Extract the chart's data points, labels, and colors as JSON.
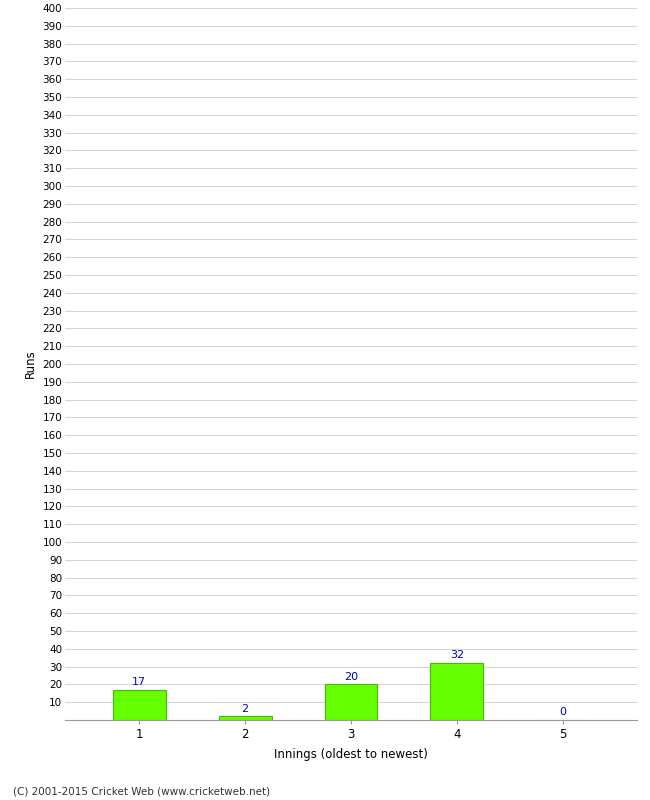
{
  "xlabel": "Innings (oldest to newest)",
  "ylabel": "Runs",
  "categories": [
    "1",
    "2",
    "3",
    "4",
    "5"
  ],
  "values": [
    17,
    2,
    20,
    32,
    0
  ],
  "bar_color": "#66ff00",
  "bar_edge_color": "#44bb00",
  "label_color": "#0000cc",
  "ylim": [
    0,
    400
  ],
  "background_color": "#ffffff",
  "grid_color": "#cccccc",
  "footer": "(C) 2001-2015 Cricket Web (www.cricketweb.net)"
}
